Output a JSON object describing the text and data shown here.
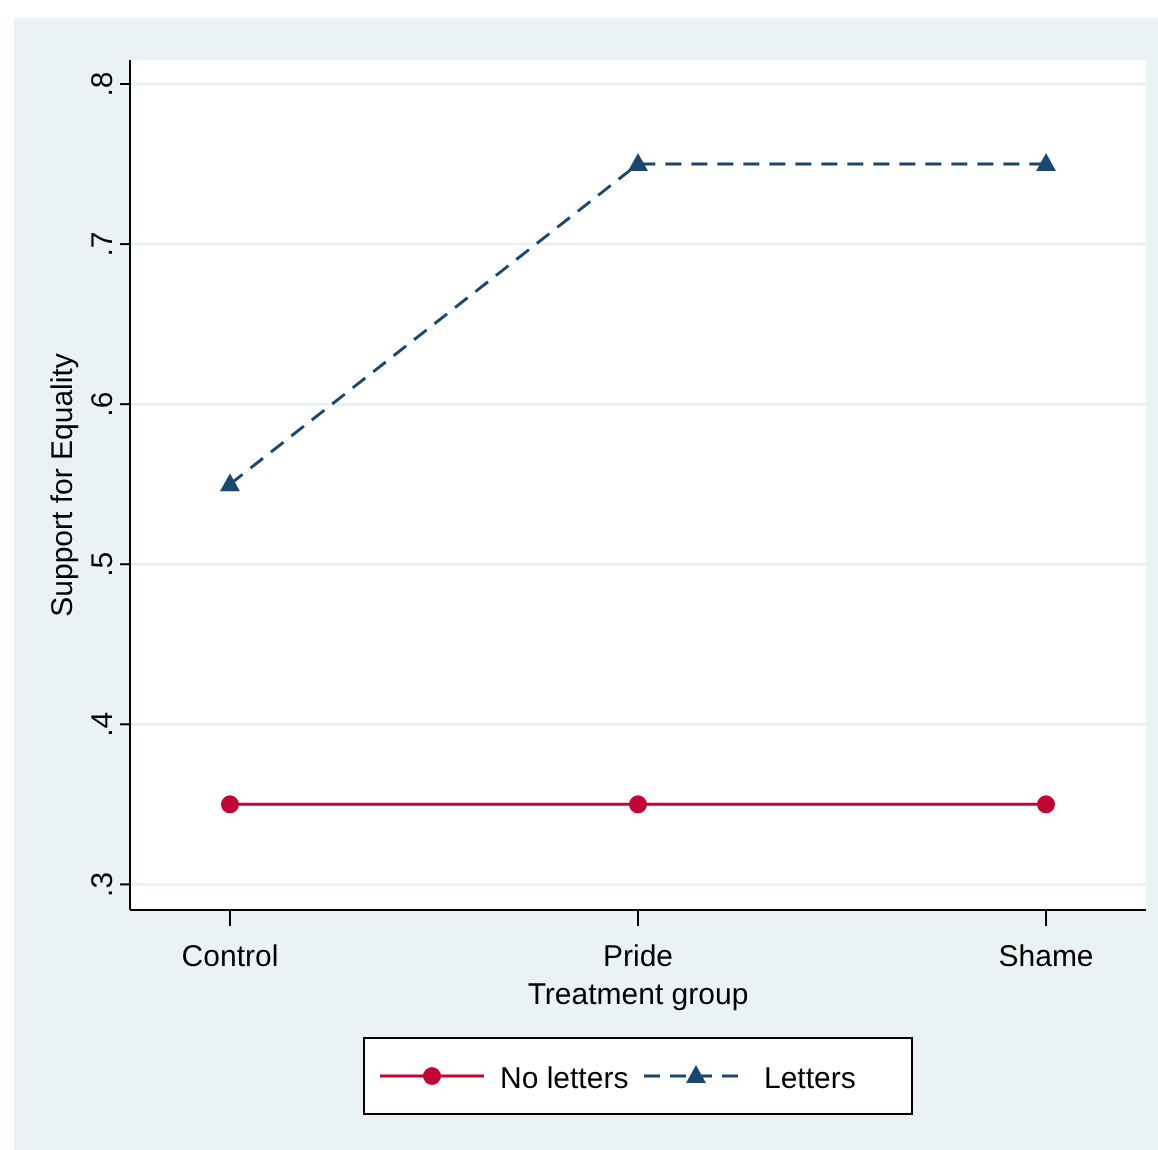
{
  "chart_data": {
    "type": "line",
    "xlabel": "Treatment group",
    "ylabel": "Support for Equality",
    "categories": [
      "Control",
      "Pride",
      "Shame"
    ],
    "series": [
      {
        "name": "No letters",
        "color": "#c10534",
        "values": [
          0.35,
          0.35,
          0.35
        ],
        "marker": "circle",
        "line_style": "solid"
      },
      {
        "name": "Letters",
        "color": "#1a476f",
        "values": [
          0.55,
          0.75,
          0.75
        ],
        "marker": "triangle",
        "line_style": "dashed"
      }
    ],
    "ylim": [
      0.284,
      0.815
    ],
    "yticks": [
      {
        "value": 0.3,
        "label": ".3"
      },
      {
        "value": 0.4,
        "label": ".4"
      },
      {
        "value": 0.5,
        "label": ".5"
      },
      {
        "value": 0.6,
        "label": ".6"
      },
      {
        "value": 0.7,
        "label": ".7"
      },
      {
        "value": 0.8,
        "label": ".8"
      }
    ],
    "grid": "y",
    "legend": "bottom"
  }
}
